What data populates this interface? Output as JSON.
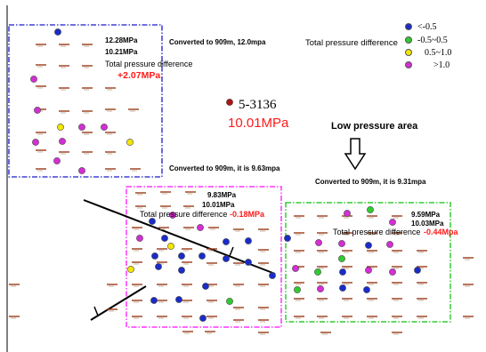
{
  "colors": {
    "blue": "#1a2cc8",
    "green": "#2ecc2e",
    "yellow": "#f2e600",
    "magenta": "#d42ed4",
    "dark_red": "#b31212",
    "label_red": "#ff1a1a",
    "box_blue": "#1a1acc",
    "box_magenta": "#ff33ff",
    "box_green": "#33cc33"
  },
  "legend": {
    "title": "Total pressure difference",
    "items": [
      {
        "label": "<-0.5",
        "color": "#1a2cc8"
      },
      {
        "label": "-0.5~0.5",
        "color": "#2ecc2e"
      },
      {
        "label": "0.5~1.0",
        "color": "#f2e600"
      },
      {
        "label": ">1.0",
        "color": "#d42ed4"
      }
    ]
  },
  "well": {
    "name": "5-3136",
    "pressure": "10.01MPa"
  },
  "low_pressure_label": "Low pressure area",
  "regions": {
    "blue": {
      "p1": "12.28MPa",
      "p2": "10.21MPa",
      "diff_label": "Total pressure difference",
      "diff_value": "+2.07MPa",
      "converted_top": "Converted to 909m, 12.0mpa",
      "converted_bottom": "Converted to 909m, it is 9.63mpa"
    },
    "magenta": {
      "p1": "9.83MPa",
      "p2": "10.01MPa",
      "diff_label": "Total pressure difference",
      "diff_value": "-0.18MPa"
    },
    "green": {
      "converted": "Converted to 909m, it is 9.31mpa",
      "p1": "9.59MPa",
      "p2": "10.03MPa",
      "diff_label": "Total pressure difference",
      "diff_value": "-0.44Mpa"
    }
  }
}
